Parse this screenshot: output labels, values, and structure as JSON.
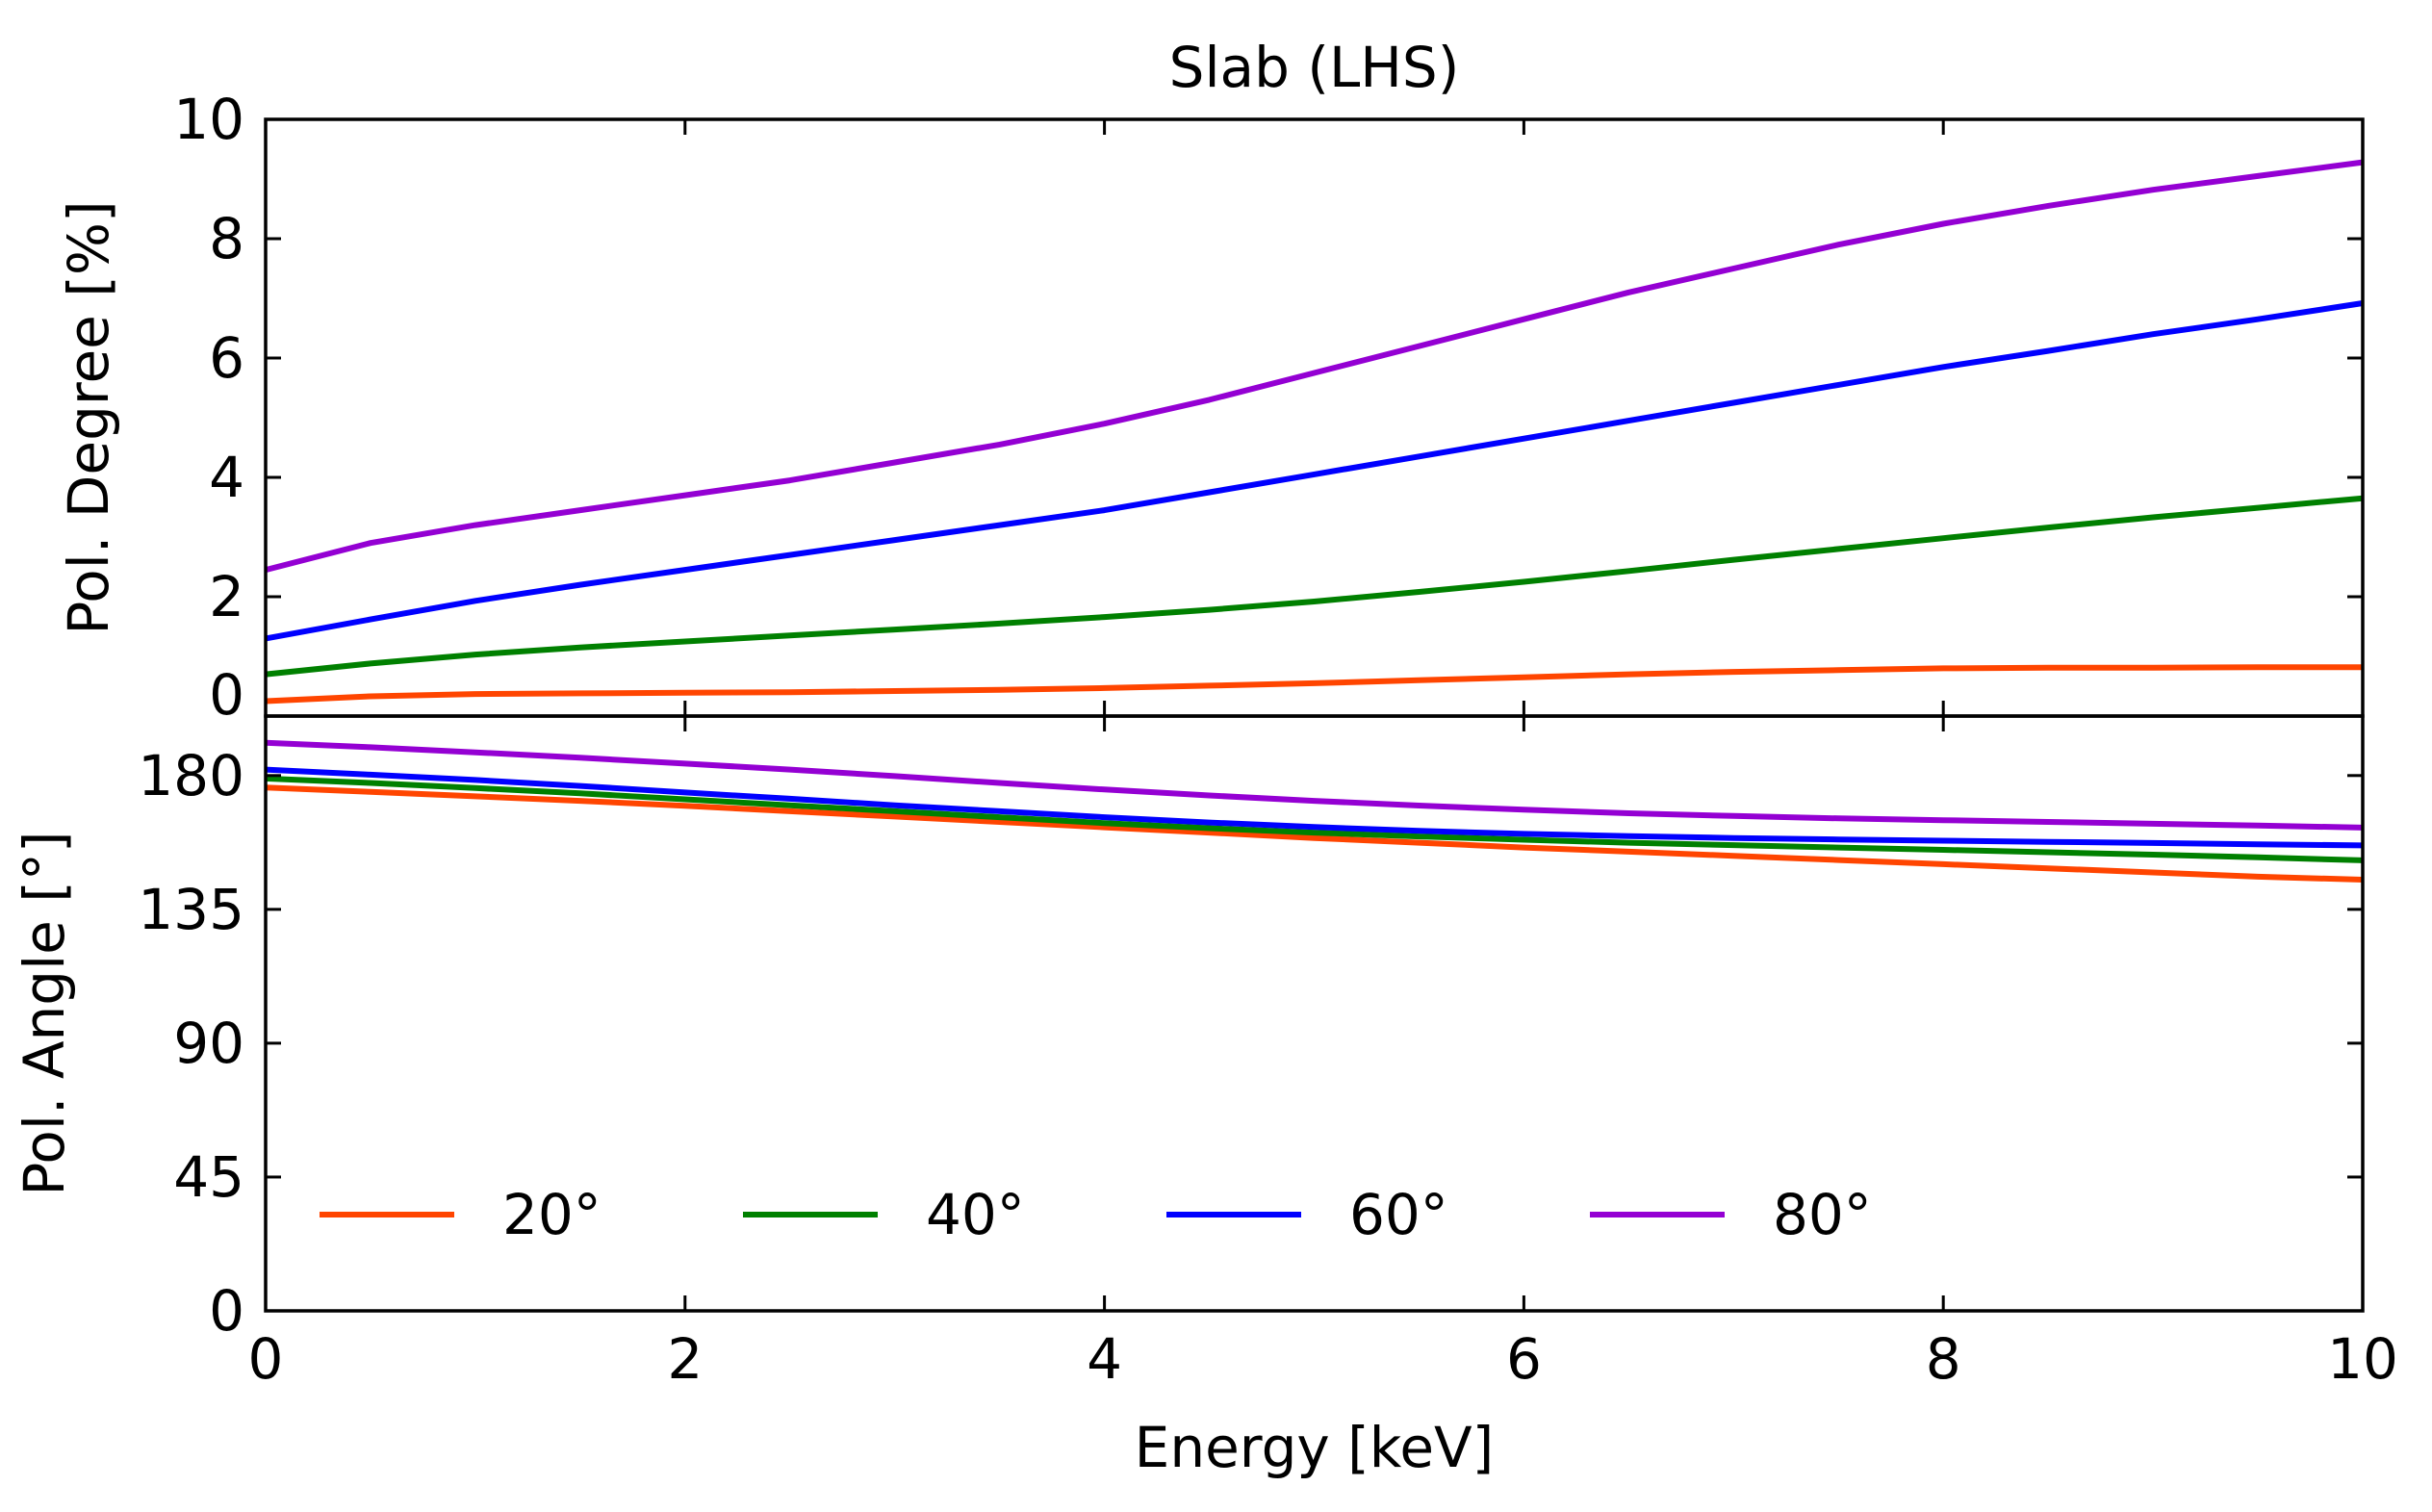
{
  "chart_data": [
    {
      "type": "line",
      "panel": "top",
      "title": "Slab (LHS)",
      "xlabel": "",
      "ylabel": "Pol. Degree [%]",
      "xlim": [
        0,
        10
      ],
      "ylim": [
        0,
        10
      ],
      "yticks": [
        0,
        2,
        4,
        6,
        8,
        10
      ],
      "ytick_labels": [
        "0",
        "2",
        "4",
        "6",
        "8",
        "10"
      ],
      "x": [
        0,
        0.5,
        1,
        1.5,
        2,
        2.5,
        3,
        3.5,
        4,
        4.5,
        5,
        5.5,
        6,
        6.5,
        7,
        7.5,
        8,
        8.5,
        9,
        9.5,
        10
      ],
      "series": [
        {
          "name": "20°",
          "color": "#ff4500",
          "values": [
            0.25,
            0.33,
            0.37,
            0.38,
            0.39,
            0.4,
            0.42,
            0.44,
            0.47,
            0.51,
            0.55,
            0.6,
            0.65,
            0.7,
            0.74,
            0.77,
            0.8,
            0.81,
            0.81,
            0.82,
            0.82
          ]
        },
        {
          "name": "40°",
          "color": "#008000",
          "values": [
            0.7,
            0.88,
            1.03,
            1.15,
            1.25,
            1.35,
            1.45,
            1.55,
            1.66,
            1.78,
            1.92,
            2.08,
            2.25,
            2.43,
            2.62,
            2.8,
            2.98,
            3.16,
            3.33,
            3.49,
            3.65
          ]
        },
        {
          "name": "60°",
          "color": "#0000ff",
          "values": [
            1.3,
            1.62,
            1.93,
            2.2,
            2.45,
            2.7,
            2.95,
            3.2,
            3.45,
            3.75,
            4.05,
            4.35,
            4.65,
            4.95,
            5.25,
            5.55,
            5.85,
            6.12,
            6.4,
            6.65,
            6.92
          ]
        },
        {
          "name": "80°",
          "color": "#9400d3",
          "values": [
            2.45,
            2.9,
            3.2,
            3.45,
            3.7,
            3.95,
            4.25,
            4.55,
            4.9,
            5.3,
            5.75,
            6.2,
            6.65,
            7.1,
            7.5,
            7.9,
            8.25,
            8.55,
            8.82,
            9.05,
            9.28
          ]
        }
      ]
    },
    {
      "type": "line",
      "panel": "bottom",
      "title": "",
      "xlabel": "Energy [keV]",
      "ylabel": "Pol. Angle [°]",
      "xlim": [
        0,
        10
      ],
      "ylim": [
        0,
        200
      ],
      "xticks": [
        0,
        2,
        4,
        6,
        8,
        10
      ],
      "xtick_labels": [
        "0",
        "2",
        "4",
        "6",
        "8",
        "10"
      ],
      "yticks": [
        0,
        45,
        90,
        135,
        180
      ],
      "ytick_labels": [
        "0",
        "45",
        "90",
        "135",
        "180"
      ],
      "x": [
        0,
        0.5,
        1,
        1.5,
        2,
        2.5,
        3,
        3.5,
        4,
        4.5,
        5,
        5.5,
        6,
        6.5,
        7,
        7.5,
        8,
        8.5,
        9,
        9.5,
        10
      ],
      "series": [
        {
          "name": "20°",
          "color": "#ff4500",
          "values": [
            176.0,
            174.5,
            173.0,
            171.5,
            169.8,
            168.0,
            166.2,
            164.4,
            162.6,
            160.8,
            159.0,
            157.4,
            155.8,
            154.4,
            153.0,
            151.6,
            150.2,
            148.8,
            147.4,
            146.0,
            145.0
          ]
        },
        {
          "name": "40°",
          "color": "#008000",
          "values": [
            179.0,
            177.5,
            175.8,
            174.0,
            172.0,
            170.0,
            168.0,
            166.0,
            164.0,
            162.3,
            160.8,
            159.5,
            158.4,
            157.4,
            156.6,
            155.8,
            155.0,
            154.2,
            153.4,
            152.5,
            151.5
          ]
        },
        {
          "name": "60°",
          "color": "#0000ff",
          "values": [
            182.0,
            180.3,
            178.5,
            176.5,
            174.3,
            172.2,
            170.0,
            168.0,
            166.0,
            164.2,
            162.7,
            161.4,
            160.4,
            159.6,
            159.0,
            158.5,
            158.1,
            157.7,
            157.3,
            156.9,
            156.5
          ]
        },
        {
          "name": "80°",
          "color": "#9400d3",
          "values": [
            191.0,
            189.5,
            187.8,
            186.0,
            184.0,
            182.0,
            179.8,
            177.5,
            175.3,
            173.3,
            171.5,
            169.9,
            168.5,
            167.3,
            166.4,
            165.6,
            165.0,
            164.4,
            163.8,
            163.2,
            162.5
          ]
        }
      ]
    }
  ],
  "legend": {
    "placement": "lower-left",
    "entries": [
      {
        "label": "20°",
        "color": "#ff4500"
      },
      {
        "label": "40°",
        "color": "#008000"
      },
      {
        "label": "60°",
        "color": "#0000ff"
      },
      {
        "label": "80°",
        "color": "#9400d3"
      }
    ]
  }
}
